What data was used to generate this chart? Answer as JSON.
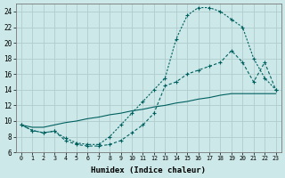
{
  "background_color": "#cce8e8",
  "grid_color": "#b0cccc",
  "line_color": "#006060",
  "xlabel": "Humidex (Indice chaleur)",
  "xlim_min": -0.5,
  "xlim_max": 23.5,
  "ylim_min": 6,
  "ylim_max": 25,
  "yticks": [
    6,
    8,
    10,
    12,
    14,
    16,
    18,
    20,
    22,
    24
  ],
  "xticks": [
    0,
    1,
    2,
    3,
    4,
    5,
    6,
    7,
    8,
    9,
    10,
    11,
    12,
    13,
    14,
    15,
    16,
    17,
    18,
    19,
    20,
    21,
    22,
    23
  ],
  "curve_dotted_x": [
    0,
    1,
    2,
    3,
    4,
    5,
    6,
    7,
    8,
    9,
    10,
    11,
    12,
    13,
    14,
    15,
    16,
    17,
    18,
    19,
    20,
    21,
    22,
    23
  ],
  "curve_dotted_y": [
    9.5,
    8.8,
    8.5,
    8.7,
    7.8,
    7.2,
    7.0,
    7.0,
    8.0,
    9.5,
    11.0,
    12.5,
    14.0,
    15.5,
    20.5,
    23.5,
    24.5,
    24.5,
    24.0,
    23.0,
    22.0,
    18.0,
    15.5,
    14.0
  ],
  "curve_dashed_x": [
    0,
    1,
    2,
    3,
    4,
    5,
    6,
    7,
    8,
    9,
    10,
    11,
    12,
    13,
    14,
    15,
    16,
    17,
    18,
    19,
    20,
    21,
    22,
    23
  ],
  "curve_dashed_y": [
    9.5,
    8.8,
    8.5,
    8.7,
    7.5,
    7.0,
    6.8,
    6.8,
    7.0,
    7.5,
    8.5,
    9.5,
    11.0,
    14.5,
    15.0,
    16.0,
    16.5,
    17.0,
    17.5,
    19.0,
    17.5,
    15.0,
    17.5,
    14.0
  ],
  "curve_solid_x": [
    0,
    1,
    2,
    3,
    4,
    5,
    6,
    7,
    8,
    9,
    10,
    11,
    12,
    13,
    14,
    15,
    16,
    17,
    18,
    19,
    20,
    21,
    22,
    23
  ],
  "curve_solid_y": [
    9.5,
    9.2,
    9.2,
    9.5,
    9.8,
    10.0,
    10.3,
    10.5,
    10.8,
    11.0,
    11.3,
    11.5,
    11.8,
    12.0,
    12.3,
    12.5,
    12.8,
    13.0,
    13.3,
    13.5,
    13.5,
    13.5,
    13.5,
    13.5
  ]
}
